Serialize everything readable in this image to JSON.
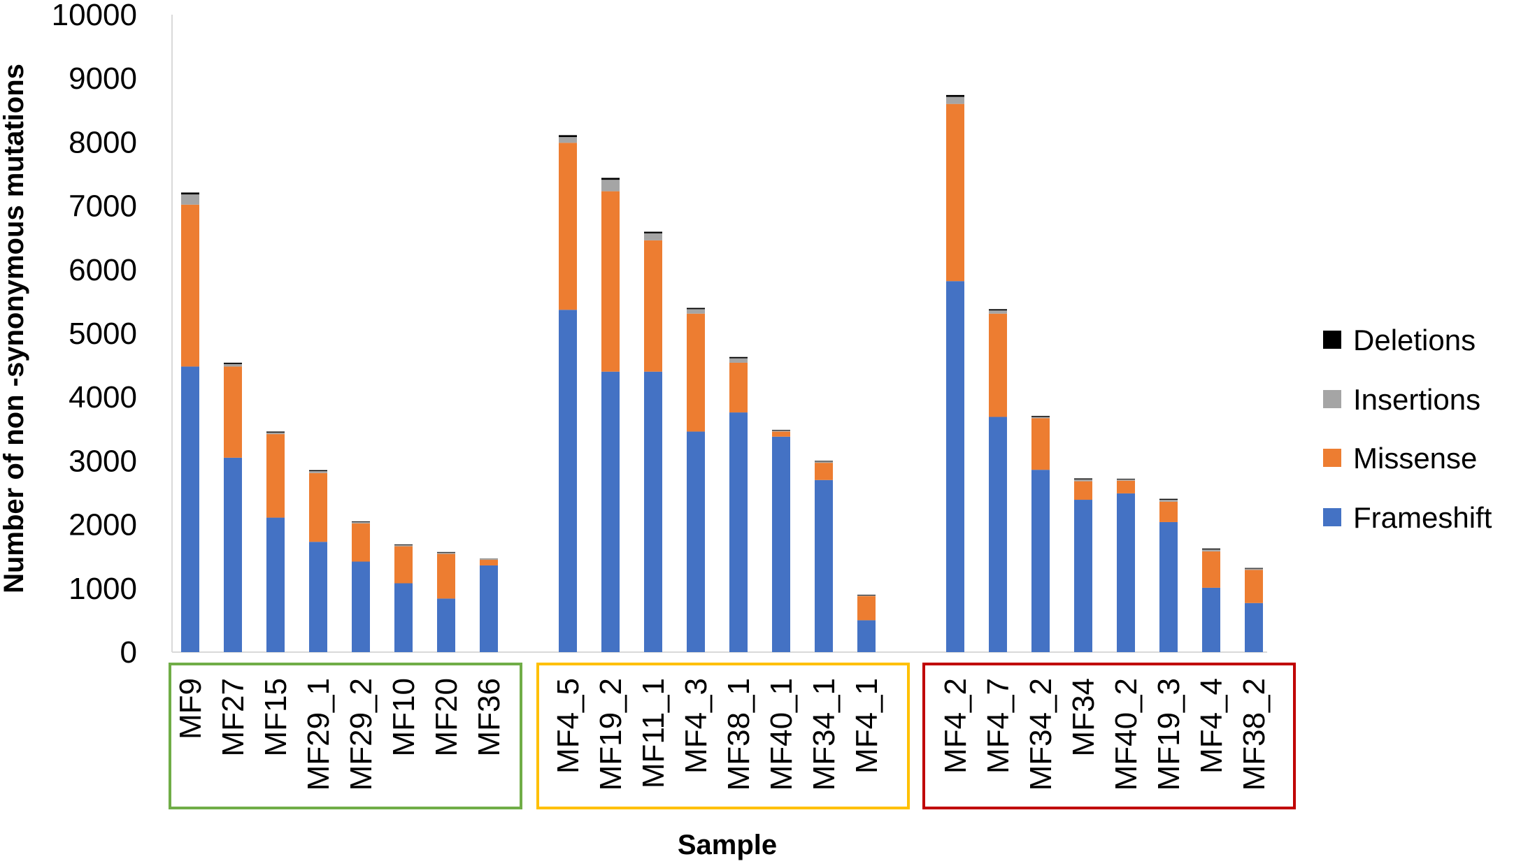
{
  "chart_data": {
    "type": "bar",
    "stacked": true,
    "title": "",
    "xlabel": "Sample",
    "ylabel": "Number of non -synonymous mutations",
    "ylim": [
      0,
      10000
    ],
    "yticks": [
      0,
      1000,
      2000,
      3000,
      4000,
      5000,
      6000,
      7000,
      8000,
      9000,
      10000
    ],
    "grid": false,
    "legend_position": "right",
    "categories": [
      "MF9",
      "MF27",
      "MF15",
      "MF29_1",
      "MF29_2",
      "MF10",
      "MF20",
      "MF36",
      "MF4_5",
      "MF19_2",
      "MF11_1",
      "MF4_3",
      "MF38_1",
      "MF40_1",
      "MF34_1",
      "MF4_1",
      "MF4_2",
      "MF4_7",
      "MF34_2",
      "MF34",
      "MF40_2",
      "MF19_3",
      "MF4_4",
      "MF38_2"
    ],
    "groups": [
      {
        "color": "#70AD47",
        "categories": [
          "MF9",
          "MF27",
          "MF15",
          "MF29_1",
          "MF29_2",
          "MF10",
          "MF20",
          "MF36"
        ]
      },
      {
        "color": "#FFC000",
        "categories": [
          "MF4_5",
          "MF19_2",
          "MF11_1",
          "MF4_3",
          "MF38_1",
          "MF40_1",
          "MF34_1",
          "MF4_1"
        ]
      },
      {
        "color": "#C00000",
        "categories": [
          "MF4_2",
          "MF4_7",
          "MF34_2",
          "MF34",
          "MF40_2",
          "MF19_3",
          "MF4_4",
          "MF38_2"
        ]
      }
    ],
    "series": [
      {
        "name": "Frameshift",
        "color": "#4472C4",
        "values": [
          4480,
          3050,
          2110,
          1730,
          1420,
          1080,
          840,
          1360,
          5370,
          4400,
          4400,
          3460,
          3760,
          3380,
          2700,
          500,
          5820,
          3690,
          2860,
          2390,
          2490,
          2040,
          1010,
          770
        ]
      },
      {
        "name": "Missense",
        "color": "#ED7D31",
        "values": [
          2540,
          1430,
          1310,
          1080,
          600,
          580,
          700,
          90,
          2620,
          2830,
          2060,
          1850,
          780,
          80,
          270,
          380,
          2780,
          1620,
          810,
          290,
          200,
          320,
          570,
          520
        ]
      },
      {
        "name": "Insertions",
        "color": "#A5A5A5",
        "values": [
          160,
          40,
          25,
          30,
          20,
          20,
          20,
          10,
          90,
          180,
          110,
          70,
          70,
          15,
          20,
          10,
          110,
          50,
          20,
          30,
          20,
          30,
          30,
          20
        ]
      },
      {
        "name": "Deletions",
        "color": "#000000",
        "values": [
          30,
          20,
          15,
          15,
          10,
          10,
          10,
          5,
          30,
          30,
          25,
          20,
          20,
          10,
          10,
          10,
          30,
          20,
          15,
          15,
          10,
          15,
          15,
          10
        ]
      }
    ],
    "legend_order": [
      "Deletions",
      "Insertions",
      "Missense",
      "Frameshift"
    ]
  }
}
